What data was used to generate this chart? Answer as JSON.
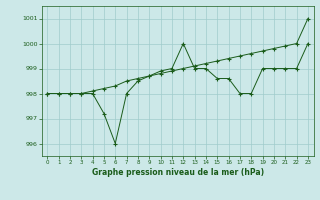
{
  "x": [
    0,
    1,
    2,
    3,
    4,
    5,
    6,
    7,
    8,
    9,
    10,
    11,
    12,
    13,
    14,
    15,
    16,
    17,
    18,
    19,
    20,
    21,
    22,
    23
  ],
  "line1": [
    998.0,
    998.0,
    998.0,
    998.0,
    998.1,
    998.2,
    998.3,
    998.5,
    998.6,
    998.7,
    998.8,
    998.9,
    999.0,
    999.1,
    999.2,
    999.3,
    999.4,
    999.5,
    999.6,
    999.7,
    999.8,
    999.9,
    1000.0,
    1001.0
  ],
  "line2": [
    998.0,
    998.0,
    998.0,
    998.0,
    998.0,
    997.2,
    996.0,
    998.0,
    998.5,
    998.7,
    998.9,
    999.0,
    1000.0,
    999.0,
    999.0,
    998.6,
    998.6,
    998.0,
    998.0,
    999.0,
    999.0,
    999.0,
    999.0,
    1000.0
  ],
  "ylim": [
    995.5,
    1001.5
  ],
  "xlim": [
    -0.5,
    23.5
  ],
  "yticks": [
    996,
    997,
    998,
    999,
    1000,
    1001
  ],
  "xticks": [
    0,
    1,
    2,
    3,
    4,
    5,
    6,
    7,
    8,
    9,
    10,
    11,
    12,
    13,
    14,
    15,
    16,
    17,
    18,
    19,
    20,
    21,
    22,
    23
  ],
  "xlabel": "Graphe pression niveau de la mer (hPa)",
  "line_color": "#1a5c1a",
  "bg_color": "#cce8e8",
  "grid_color": "#a0cccc",
  "marker": "+",
  "markersize": 3,
  "linewidth": 0.7
}
